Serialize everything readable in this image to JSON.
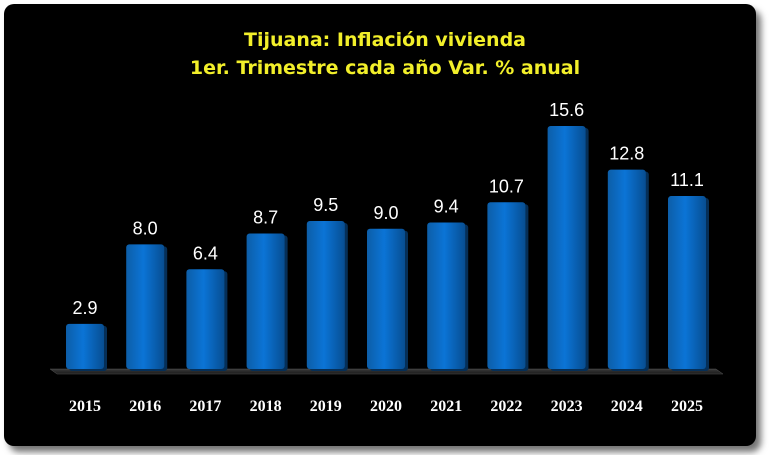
{
  "chart_data": {
    "type": "bar",
    "title": "Tijuana: Inflación vivienda",
    "subtitle": "1er. Trimestre cada año Var. % anual",
    "categories": [
      "2015",
      "2016",
      "2017",
      "2018",
      "2019",
      "2020",
      "2021",
      "2022",
      "2023",
      "2024",
      "2025"
    ],
    "values": [
      2.9,
      8.0,
      6.4,
      8.7,
      9.5,
      9.0,
      9.4,
      10.7,
      15.6,
      12.8,
      11.1
    ],
    "labels": [
      "2.9",
      "8.0",
      "6.4",
      "8.7",
      "9.5",
      "9.0",
      "9.4",
      "10.7",
      "15.6",
      "12.8",
      "11.1"
    ],
    "xlabel": "",
    "ylabel": "",
    "ylim": [
      0,
      16
    ],
    "grid": false,
    "legend": "none",
    "colors": {
      "background": "#000000",
      "bar": "#0a6cc4",
      "title": "#f2ef2a",
      "text": "#ffffff"
    }
  }
}
